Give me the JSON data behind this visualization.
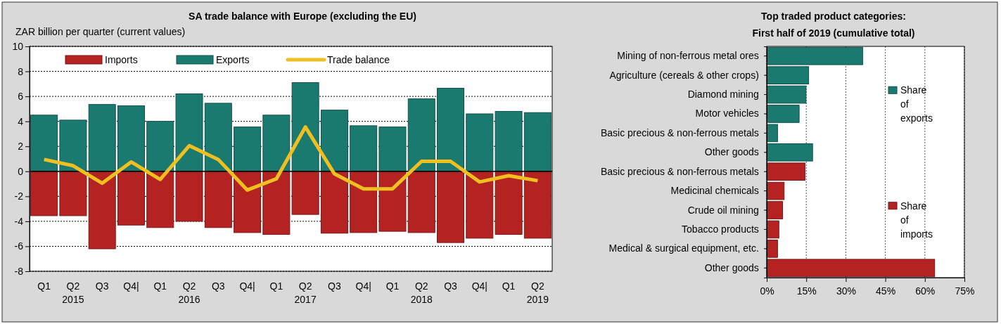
{
  "chart_data": [
    {
      "type": "bar",
      "title": "SA trade balance with Europe (excluding the EU)",
      "ylabel": "ZAR billion per quarter (current values)",
      "categories": [
        "Q1",
        "Q2\n2015",
        "Q3",
        "Q4|",
        "Q1",
        "Q2\n2016",
        "Q3",
        "Q4|",
        "Q1",
        "Q2\n2017",
        "Q3",
        "Q4|",
        "Q1",
        "Q2\n2018",
        "Q3",
        "Q4|",
        "Q1",
        "Q2\n2019"
      ],
      "series": [
        {
          "name": "Imports",
          "color": "#b52222",
          "values": [
            -3.55,
            -3.55,
            -6.2,
            -4.3,
            -4.5,
            -4.0,
            -4.5,
            -4.9,
            -5.05,
            -3.45,
            -4.95,
            -4.9,
            -4.8,
            -4.9,
            -5.7,
            -5.35,
            -5.05,
            -5.35
          ]
        },
        {
          "name": "Exports",
          "color": "#1a7a70",
          "values": [
            4.5,
            4.1,
            5.35,
            5.25,
            4.0,
            6.2,
            5.45,
            3.55,
            4.5,
            7.1,
            4.9,
            3.65,
            3.55,
            5.8,
            6.65,
            4.6,
            4.8,
            4.7
          ]
        },
        {
          "name": "Trade balance",
          "type": "line",
          "color": "#f0c020",
          "values": [
            0.95,
            0.45,
            -0.95,
            0.75,
            -0.65,
            2.05,
            0.95,
            -1.5,
            -0.6,
            3.55,
            -0.2,
            -1.4,
            -1.4,
            0.8,
            0.8,
            -0.85,
            -0.35,
            -0.75
          ]
        }
      ],
      "stacked": true,
      "ylim": [
        -8,
        10
      ],
      "yticks": [
        -8,
        -6,
        -4,
        -2,
        0,
        2,
        4,
        6,
        8,
        10
      ],
      "grid": "y",
      "legend": "top",
      "line_style": "solid",
      "marker": "none"
    },
    {
      "type": "bar",
      "orientation": "horizontal",
      "title": "Top traded product categories:",
      "subtitle": "First half of 2019 (cumulative total)",
      "categories": [
        "Mining of non-ferrous metal ores",
        "Agriculture (cereals & other crops)",
        "Diamond mining",
        "Motor vehicles",
        "Basic precious & non-ferrous metals",
        "Other goods",
        "Basic precious & non-ferrous metals",
        "Medicinal chemicals",
        "Crude oil mining",
        "Tobacco products",
        "Medical & surgical equipment, etc.",
        "Other goods"
      ],
      "series": [
        {
          "name": "Share of exports",
          "color": "#1a7a70",
          "values": [
            36.4,
            15.9,
            14.9,
            12.3,
            4.1,
            17.4,
            null,
            null,
            null,
            null,
            null,
            null
          ]
        },
        {
          "name": "Share of imports",
          "color": "#b52222",
          "values": [
            null,
            null,
            null,
            null,
            null,
            null,
            14.5,
            6.6,
            6.0,
            4.6,
            4.1,
            63.7
          ]
        }
      ],
      "xlim": [
        0,
        75
      ],
      "xticks": [
        {
          "value": 0,
          "label": "0%"
        },
        {
          "value": 15,
          "label": "15%"
        },
        {
          "value": 30,
          "label": "30%"
        },
        {
          "value": 45,
          "label": "45%"
        },
        {
          "value": 60,
          "label": "60%"
        },
        {
          "value": 75,
          "label": "75%"
        }
      ],
      "grid": "x",
      "legend": "right"
    }
  ]
}
